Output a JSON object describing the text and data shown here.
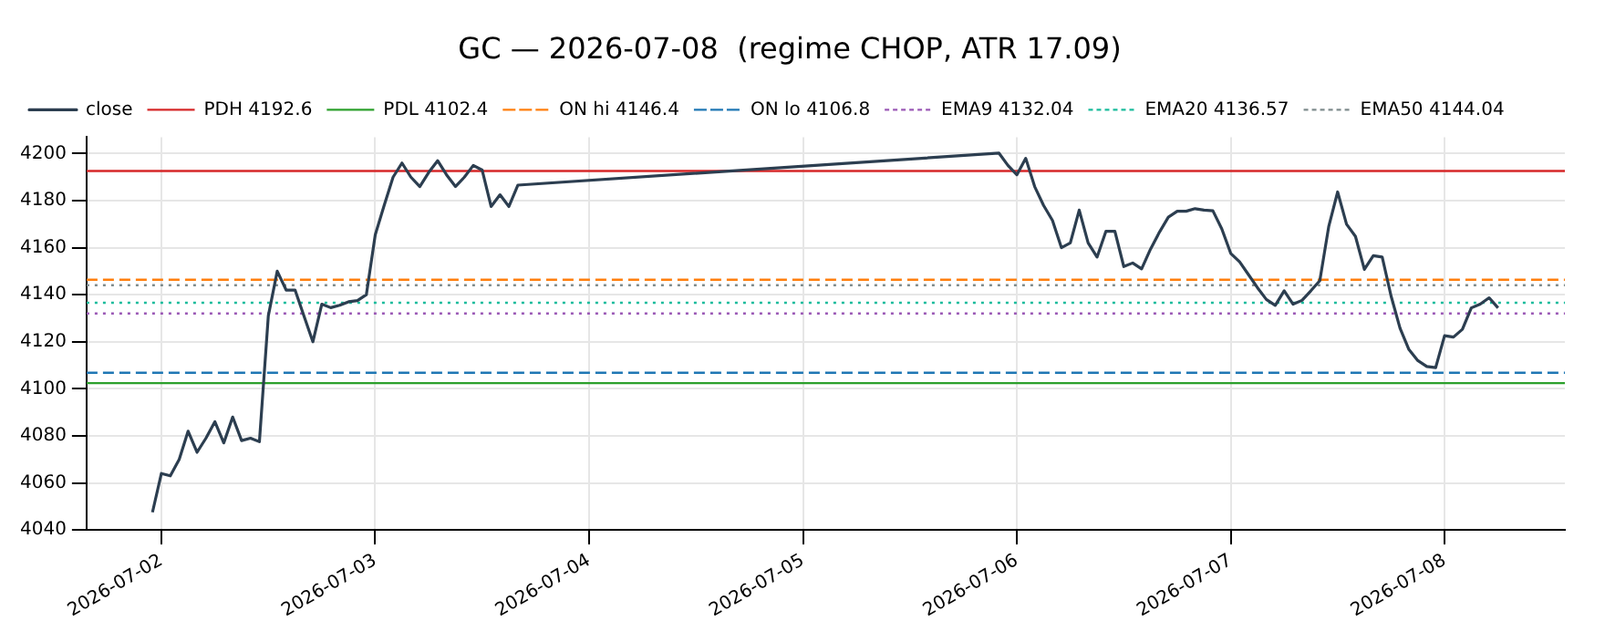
{
  "chart_data": {
    "type": "line",
    "title": "GC — 2026-07-08  (regime CHOP, ATR 17.09)",
    "x": [
      "2026-07-01T23:00",
      "2026-07-02T00:00",
      "2026-07-02T01:00",
      "2026-07-02T02:00",
      "2026-07-02T03:00",
      "2026-07-02T04:00",
      "2026-07-02T05:00",
      "2026-07-02T06:00",
      "2026-07-02T07:00",
      "2026-07-02T08:00",
      "2026-07-02T09:00",
      "2026-07-02T10:00",
      "2026-07-02T11:00",
      "2026-07-02T12:00",
      "2026-07-02T13:00",
      "2026-07-02T14:00",
      "2026-07-02T15:00",
      "2026-07-02T16:00",
      "2026-07-02T17:00",
      "2026-07-02T18:00",
      "2026-07-02T19:00",
      "2026-07-02T20:00",
      "2026-07-02T21:00",
      "2026-07-02T22:00",
      "2026-07-02T23:00",
      "2026-07-03T00:00",
      "2026-07-03T01:00",
      "2026-07-03T02:00",
      "2026-07-03T03:00",
      "2026-07-03T04:00",
      "2026-07-03T05:00",
      "2026-07-03T06:00",
      "2026-07-03T07:00",
      "2026-07-03T08:00",
      "2026-07-03T09:00",
      "2026-07-03T10:00",
      "2026-07-03T11:00",
      "2026-07-03T12:00",
      "2026-07-03T13:00",
      "2026-07-03T14:00",
      "2026-07-03T15:00",
      "2026-07-03T16:00",
      "2026-07-05T22:00",
      "2026-07-05T23:00",
      "2026-07-06T00:00",
      "2026-07-06T01:00",
      "2026-07-06T02:00",
      "2026-07-06T03:00",
      "2026-07-06T04:00",
      "2026-07-06T05:00",
      "2026-07-06T06:00",
      "2026-07-06T07:00",
      "2026-07-06T08:00",
      "2026-07-06T09:00",
      "2026-07-06T10:00",
      "2026-07-06T11:00",
      "2026-07-06T12:00",
      "2026-07-06T13:00",
      "2026-07-06T14:00",
      "2026-07-06T15:00",
      "2026-07-06T16:00",
      "2026-07-06T17:00",
      "2026-07-06T18:00",
      "2026-07-06T19:00",
      "2026-07-06T20:00",
      "2026-07-06T21:00",
      "2026-07-06T22:00",
      "2026-07-06T23:00",
      "2026-07-07T00:00",
      "2026-07-07T01:00",
      "2026-07-07T02:00",
      "2026-07-07T03:00",
      "2026-07-07T04:00",
      "2026-07-07T05:00",
      "2026-07-07T06:00",
      "2026-07-07T07:00",
      "2026-07-07T08:00",
      "2026-07-07T09:00",
      "2026-07-07T10:00",
      "2026-07-07T11:00",
      "2026-07-07T12:00",
      "2026-07-07T13:00",
      "2026-07-07T14:00",
      "2026-07-07T15:00",
      "2026-07-07T16:00",
      "2026-07-07T17:00",
      "2026-07-07T18:00",
      "2026-07-07T19:00",
      "2026-07-07T20:00",
      "2026-07-07T21:00",
      "2026-07-07T22:00",
      "2026-07-07T23:00",
      "2026-07-08T00:00",
      "2026-07-08T01:00",
      "2026-07-08T02:00",
      "2026-07-08T03:00",
      "2026-07-08T04:00",
      "2026-07-08T05:00",
      "2026-07-08T06:00"
    ],
    "series": [
      {
        "name": "close",
        "color": "#2c3e50",
        "values": [
          4047.5,
          4064,
          4063,
          4070,
          4082,
          4073,
          4079,
          4086,
          4077,
          4088,
          4078,
          4079,
          4077.5,
          4131,
          4150,
          4142,
          4142,
          4131,
          4120,
          4136,
          4134.5,
          4135.5,
          4137,
          4137.5,
          4140,
          4165.5,
          4178,
          4190,
          4196,
          4190,
          4186,
          4192,
          4197,
          4191,
          4186,
          4190,
          4195,
          4193,
          4177.5,
          4182.5,
          4177.5,
          4186.6,
          4200.2,
          4195,
          4191,
          4198,
          4186,
          4178,
          4171.6,
          4160,
          4162,
          4176,
          4162,
          4156,
          4167,
          4167,
          4152,
          4153.5,
          4151,
          4159.4,
          4166.6,
          4173,
          4175.5,
          4175.5,
          4176.6,
          4176,
          4175.7,
          4168,
          4157.6,
          4154,
          4148.5,
          4143,
          4138,
          4135.5,
          4141.7,
          4136,
          4137.6,
          4141.7,
          4146,
          4169,
          4183.7,
          4170,
          4164.8,
          4150.8,
          4156.6,
          4156,
          4139.4,
          4125.8,
          4116.7,
          4112,
          4109.5,
          4109,
          4122.6,
          4122,
          4125.3,
          4134.4,
          4136,
          4138.7,
          4134.4
        ]
      }
    ],
    "ref_lines": [
      {
        "axis": "y",
        "value": 4192.6,
        "label": "PDH 4192.6",
        "color": "#d62728",
        "line_style": "solid"
      },
      {
        "axis": "y",
        "value": 4102.4,
        "label": "PDL 4102.4",
        "color": "#2ca02c",
        "line_style": "solid"
      },
      {
        "axis": "y",
        "value": 4146.4,
        "label": "ON hi 4146.4",
        "color": "#ff7f0e",
        "line_style": "dashed"
      },
      {
        "axis": "y",
        "value": 4106.8,
        "label": "ON lo 4106.8",
        "color": "#1f77b4",
        "line_style": "dashed"
      },
      {
        "axis": "y",
        "value": 4132.04,
        "label": "EMA9 4132.04",
        "color": "#9b59b6",
        "line_style": "dotted"
      },
      {
        "axis": "y",
        "value": 4136.57,
        "label": "EMA20 4136.57",
        "color": "#1abc9c",
        "line_style": "dotted"
      },
      {
        "axis": "y",
        "value": 4144.04,
        "label": "EMA50 4144.04",
        "color": "#7f8c8d",
        "line_style": "dotted"
      }
    ],
    "xlim": [
      "2026-07-01T15:36",
      "2026-07-08T13:30"
    ],
    "xticks": [
      "2026-07-02",
      "2026-07-03",
      "2026-07-04",
      "2026-07-05",
      "2026-07-06",
      "2026-07-07",
      "2026-07-08"
    ],
    "ylim": [
      4040,
      4207
    ],
    "yticks": [
      4040,
      4060,
      4080,
      4100,
      4120,
      4140,
      4160,
      4180,
      4200
    ],
    "grid": true,
    "legend": "top left",
    "marker": "none",
    "line_style": "solid"
  }
}
